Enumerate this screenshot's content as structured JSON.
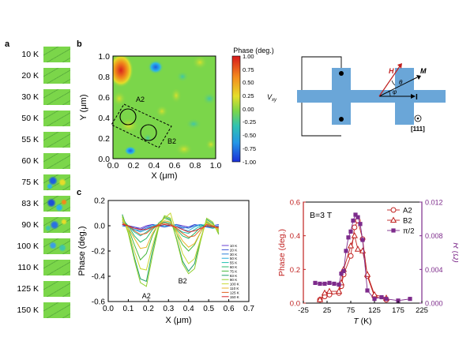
{
  "panel_labels": {
    "a": "a",
    "b": "b",
    "c": "c"
  },
  "temperatures": [
    "10 K",
    "20 K",
    "30 K",
    "50 K",
    "55 K",
    "60 K",
    "75 K",
    "83 K",
    "90 K",
    "100 K",
    "110 K",
    "125 K",
    "150 K"
  ],
  "map": {
    "xlabel": "X (μm)",
    "ylabel": "Y (μm)",
    "ticks": [
      "0.0",
      "0.2",
      "0.4",
      "0.6",
      "0.8",
      "1.0"
    ],
    "spot_labels": [
      "A2",
      "B2"
    ],
    "colorbar_title": "Phase (deg.)",
    "colorbar_ticks": [
      "1.00",
      "0.75",
      "0.50",
      "0.25",
      "0.00",
      "-0.25",
      "-0.50",
      "-0.75",
      "-1.00"
    ]
  },
  "schematic": {
    "vxy": "V",
    "vxy_sub": "xy",
    "h": "H",
    "m": "M",
    "theta": "θ",
    "phi": "φ",
    "current": "I",
    "direction": "[111]"
  },
  "colors": {
    "map_base": "#7bd64a",
    "sample": "#6aa6d8",
    "red_axis": "#c0201f",
    "purple": "#7d2b8b"
  },
  "chart_data": [
    {
      "type": "line",
      "xlabel": "X (μm)",
      "ylabel": "Phase (deg.)",
      "xlim": [
        0.0,
        0.7
      ],
      "ylim": [
        -0.6,
        0.2
      ],
      "xticks": [
        "0.0",
        "0.1",
        "0.2",
        "0.3",
        "0.4",
        "0.5",
        "0.6",
        "0.7"
      ],
      "yticks": [
        "-0.6",
        "-0.4",
        "-0.2",
        "0.0",
        "0.2"
      ],
      "annotations": [
        "A2",
        "B2"
      ],
      "x": [
        0.07,
        0.1,
        0.13,
        0.16,
        0.19,
        0.22,
        0.25,
        0.28,
        0.31,
        0.34,
        0.37,
        0.4,
        0.43,
        0.46,
        0.49,
        0.52,
        0.55
      ],
      "series": [
        {
          "name": "10 K",
          "color": "#6a3fd1",
          "values": [
            0.0,
            0.0,
            -0.01,
            -0.02,
            0.0,
            0.01,
            0.0,
            -0.01,
            0.0,
            0.01,
            0.0,
            -0.01,
            0.0,
            0.01,
            0.0,
            -0.01,
            0.0
          ]
        },
        {
          "name": "20 K",
          "color": "#3d52d6",
          "values": [
            0.01,
            0.0,
            -0.01,
            -0.03,
            -0.01,
            0.01,
            0.0,
            -0.01,
            0.01,
            0.0,
            -0.02,
            -0.01,
            0.01,
            0.0,
            -0.01,
            0.0,
            0.01
          ]
        },
        {
          "name": "30 K",
          "color": "#2e7fd8",
          "values": [
            0.0,
            -0.01,
            -0.03,
            -0.04,
            -0.02,
            0.0,
            0.01,
            -0.01,
            0.0,
            0.01,
            -0.01,
            -0.02,
            0.0,
            0.01,
            -0.01,
            -0.02,
            0.0
          ]
        },
        {
          "name": "50 K",
          "color": "#26a9d8",
          "values": [
            0.02,
            0.0,
            -0.03,
            -0.05,
            -0.03,
            0.0,
            0.01,
            0.0,
            0.01,
            0.0,
            -0.03,
            -0.04,
            -0.01,
            0.01,
            0.0,
            -0.02,
            0.0
          ]
        },
        {
          "name": "55 K",
          "color": "#1fc0b0",
          "values": [
            0.03,
            0.0,
            -0.05,
            -0.08,
            -0.05,
            -0.01,
            0.01,
            0.02,
            0.01,
            -0.02,
            -0.05,
            -0.06,
            -0.03,
            0.0,
            0.01,
            -0.02,
            -0.01
          ]
        },
        {
          "name": "60 K",
          "color": "#2ab86b",
          "values": [
            0.05,
            0.0,
            -0.08,
            -0.13,
            -0.1,
            -0.03,
            0.01,
            0.03,
            0.02,
            -0.03,
            -0.08,
            -0.1,
            -0.06,
            -0.01,
            0.02,
            -0.01,
            -0.02
          ]
        },
        {
          "name": "75 K",
          "color": "#46b83a",
          "values": [
            0.07,
            -0.02,
            -0.15,
            -0.27,
            -0.22,
            -0.08,
            0.02,
            0.06,
            0.04,
            -0.06,
            -0.15,
            -0.2,
            -0.15,
            -0.05,
            0.03,
            0.0,
            -0.04
          ]
        },
        {
          "name": "83 K",
          "color": "#20a06a",
          "values": [
            0.09,
            -0.05,
            -0.25,
            -0.42,
            -0.44,
            -0.2,
            0.0,
            0.07,
            0.05,
            -0.1,
            -0.28,
            -0.36,
            -0.3,
            -0.1,
            0.05,
            0.02,
            -0.06
          ]
        },
        {
          "name": "90 K",
          "color": "#8fcf2e",
          "values": [
            0.08,
            -0.06,
            -0.27,
            -0.45,
            -0.48,
            -0.24,
            -0.02,
            0.08,
            0.06,
            -0.11,
            -0.3,
            -0.38,
            -0.34,
            -0.12,
            0.06,
            0.03,
            -0.07
          ]
        },
        {
          "name": "100 K",
          "color": "#c9d831",
          "values": [
            0.06,
            -0.04,
            -0.2,
            -0.34,
            -0.35,
            -0.16,
            0.0,
            0.06,
            0.1,
            -0.06,
            -0.22,
            -0.3,
            -0.26,
            -0.1,
            0.04,
            0.01,
            -0.05
          ]
        },
        {
          "name": "110 K",
          "color": "#e8b52a",
          "values": [
            0.04,
            -0.02,
            -0.1,
            -0.18,
            -0.17,
            -0.06,
            0.01,
            0.04,
            0.03,
            -0.04,
            -0.12,
            -0.17,
            -0.14,
            -0.05,
            0.02,
            0.0,
            -0.03
          ]
        },
        {
          "name": "125 K",
          "color": "#e0611f",
          "values": [
            0.02,
            0.0,
            -0.04,
            -0.07,
            -0.06,
            -0.02,
            0.01,
            0.02,
            0.01,
            -0.02,
            -0.06,
            -0.09,
            -0.08,
            -0.03,
            0.01,
            0.0,
            -0.02
          ]
        },
        {
          "name": "150 K",
          "color": "#d8232a",
          "values": [
            0.01,
            0.0,
            -0.02,
            -0.03,
            -0.03,
            -0.01,
            0.0,
            0.01,
            0.0,
            -0.01,
            -0.03,
            -0.05,
            -0.04,
            -0.02,
            0.0,
            -0.01,
            -0.01
          ]
        }
      ]
    },
    {
      "type": "line",
      "xlabel": "T (K)",
      "ylabel": "Phase (deg.)",
      "ylabel_right": "R (Ω)",
      "field_label": "B=3 T",
      "xlim": [
        -25,
        225
      ],
      "ylim": [
        0.0,
        0.6
      ],
      "ylim_right": [
        0.0,
        0.012
      ],
      "xticks": [
        "-25",
        "25",
        "75",
        "125",
        "175",
        "225"
      ],
      "yticks": [
        "0.0",
        "0.2",
        "0.4",
        "0.6"
      ],
      "yticks_right": [
        "0.000",
        "0.004",
        "0.008",
        "0.012"
      ],
      "series": [
        {
          "name": "A2",
          "axis": "left",
          "marker": "circle",
          "color": "#c0201f",
          "x": [
            10,
            20,
            30,
            50,
            55,
            60,
            75,
            83,
            90,
            100,
            110,
            125,
            150
          ],
          "values": [
            0.02,
            0.04,
            0.05,
            0.06,
            0.1,
            0.17,
            0.28,
            0.45,
            0.49,
            0.38,
            0.16,
            0.04,
            0.02
          ]
        },
        {
          "name": "B2",
          "axis": "left",
          "marker": "triangle",
          "color": "#c0201f",
          "x": [
            10,
            20,
            30,
            50,
            55,
            60,
            75,
            83,
            90,
            100,
            110,
            125,
            150
          ],
          "values": [
            0.02,
            0.06,
            0.07,
            0.07,
            0.12,
            0.2,
            0.34,
            0.4,
            0.32,
            0.31,
            0.17,
            0.05,
            0.03
          ]
        },
        {
          "name": "π/2",
          "axis": "right",
          "marker": "square",
          "color": "#7d2b8b",
          "x": [
            0,
            10,
            20,
            30,
            40,
            50,
            55,
            60,
            65,
            70,
            75,
            80,
            85,
            90,
            95,
            100,
            110,
            125,
            140,
            150,
            175,
            200
          ],
          "values": [
            0.0024,
            0.0023,
            0.0023,
            0.0024,
            0.0023,
            0.0022,
            0.0035,
            0.0038,
            0.0062,
            0.0078,
            0.0085,
            0.0098,
            0.0105,
            0.0102,
            0.0094,
            0.0075,
            0.0015,
            0.0005,
            0.0007,
            0.0005,
            0.0003,
            0.0005
          ]
        }
      ]
    }
  ]
}
